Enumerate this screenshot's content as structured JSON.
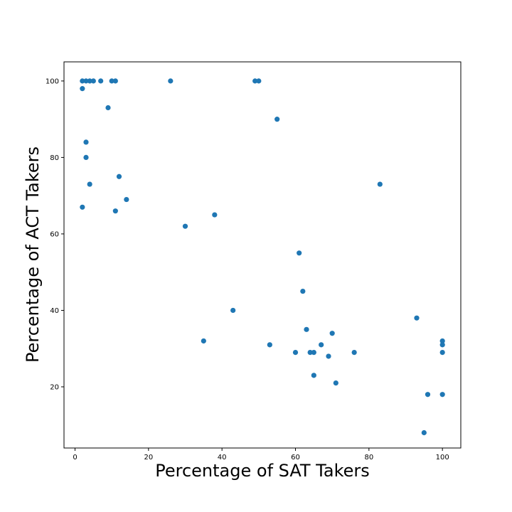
{
  "chart_data": {
    "type": "scatter",
    "xlabel": "Percentage of SAT Takers",
    "ylabel": "Percentage of ACT Takers",
    "xlim": [
      -3,
      105
    ],
    "ylim": [
      4,
      105
    ],
    "xticks": [
      0,
      20,
      40,
      60,
      80,
      100
    ],
    "yticks": [
      20,
      40,
      60,
      80,
      100
    ],
    "grid": false,
    "color": "#1f77b4",
    "series": [
      {
        "points": [
          [
            2,
            100
          ],
          [
            3,
            100
          ],
          [
            4,
            100
          ],
          [
            5,
            100
          ],
          [
            7,
            100
          ],
          [
            10,
            100
          ],
          [
            11,
            100
          ],
          [
            26,
            100
          ],
          [
            49,
            100
          ],
          [
            50,
            100
          ],
          [
            2,
            98
          ],
          [
            9,
            93
          ],
          [
            55,
            90
          ],
          [
            3,
            84
          ],
          [
            3,
            80
          ],
          [
            12,
            75
          ],
          [
            4,
            73
          ],
          [
            83,
            73
          ],
          [
            14,
            69
          ],
          [
            2,
            67
          ],
          [
            11,
            66
          ],
          [
            38,
            65
          ],
          [
            30,
            62
          ],
          [
            61,
            55
          ],
          [
            62,
            45
          ],
          [
            43,
            40
          ],
          [
            93,
            38
          ],
          [
            63,
            35
          ],
          [
            70,
            34
          ],
          [
            35,
            32
          ],
          [
            100,
            32
          ],
          [
            53,
            31
          ],
          [
            67,
            31
          ],
          [
            100,
            31
          ],
          [
            60,
            29
          ],
          [
            64,
            29
          ],
          [
            65,
            29
          ],
          [
            76,
            29
          ],
          [
            100,
            29
          ],
          [
            69,
            28
          ],
          [
            65,
            23
          ],
          [
            71,
            21
          ],
          [
            96,
            18
          ],
          [
            100,
            18
          ],
          [
            95,
            8
          ]
        ]
      }
    ]
  }
}
